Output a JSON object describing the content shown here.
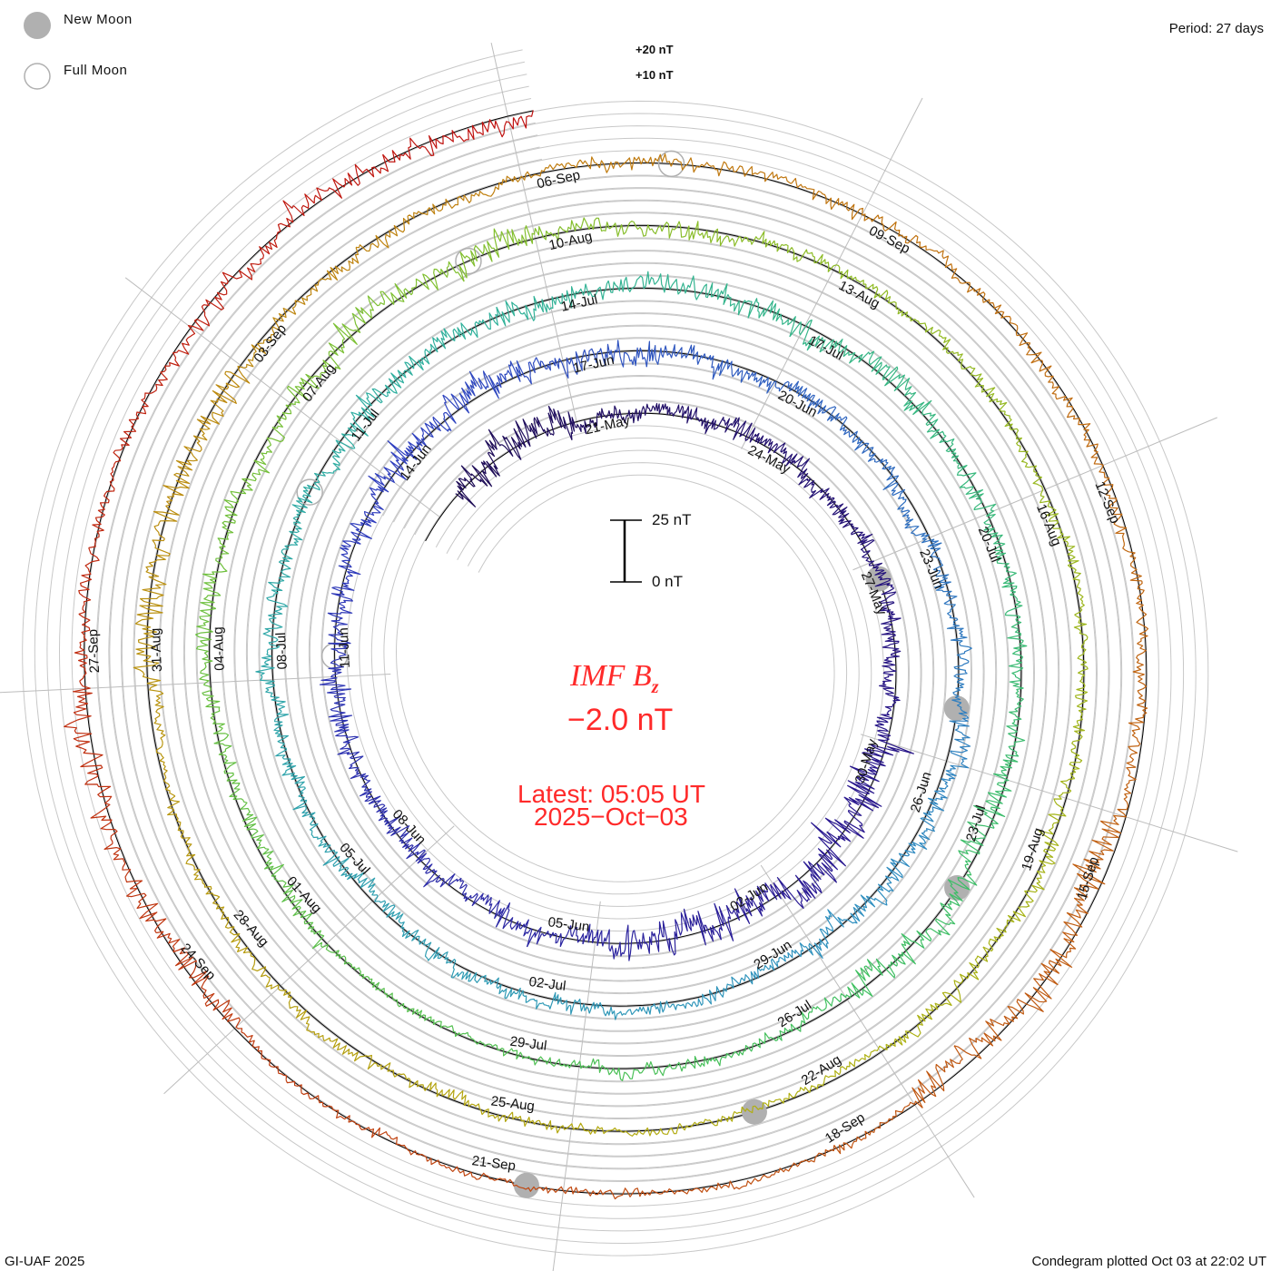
{
  "legend": {
    "new_moon": "New Moon",
    "full_moon": "Full Moon"
  },
  "period_label": "Period: 27 days",
  "grid_labels": [
    "+20 nT",
    "+10 nT"
  ],
  "scale_bar": {
    "top_label": "25 nT",
    "bottom_label": "0 nT",
    "value_nT": 25
  },
  "center": {
    "title": "IMF B",
    "title_sub": "z",
    "value": "−2.0 nT",
    "latest_label": "Latest: 05:05 UT",
    "latest_date": "2025−Oct−03"
  },
  "footer": {
    "left": "GI-UAF 2025",
    "right": "Condegram plotted Oct 03 at 22:02 UT"
  },
  "chart_data": {
    "type": "line",
    "subtype": "polar-spiral condegram",
    "title": "IMF Bz",
    "units": "nT",
    "period_days": 27,
    "first_label_date": "2025-05-21",
    "data_start": "2025-05-18",
    "data_end": "2025-10-03 05:05",
    "latest_value_nT": -2.0,
    "grid_step_nT": 5,
    "date_labels": [
      "21-May",
      "24-May",
      "27-May",
      "30-May",
      "02-Jun",
      "05-Jun",
      "08-Jun",
      "11-Jun",
      "14-Jun",
      "17-Jun",
      "20-Jun",
      "23-Jun",
      "26-Jun",
      "29-Jun",
      "02-Jul",
      "05-Jul",
      "08-Jul",
      "11-Jul",
      "14-Jul",
      "17-Jul",
      "20-Jul",
      "23-Jul",
      "26-Jul",
      "29-Jul",
      "01-Aug",
      "04-Aug",
      "07-Aug",
      "10-Aug",
      "13-Aug",
      "16-Aug",
      "19-Aug",
      "22-Aug",
      "25-Aug",
      "28-Aug",
      "31-Aug",
      "03-Sep",
      "06-Sep",
      "09-Sep",
      "12-Sep",
      "15-Sep",
      "18-Sep",
      "21-Sep",
      "24-Sep",
      "27-Sep"
    ],
    "approx_variability_nT_per_3day_from_2025-05-18": [
      7,
      4,
      4,
      4,
      9,
      8,
      5,
      5,
      5,
      6,
      5,
      4,
      4,
      5,
      3,
      4,
      4,
      4,
      5,
      5,
      5,
      4,
      6,
      3,
      2,
      4,
      4,
      6,
      4,
      3,
      3,
      4,
      2,
      3,
      3,
      6,
      3,
      3,
      3,
      3,
      7,
      2,
      2,
      6,
      3,
      5,
      5
    ],
    "new_moons": [
      "2025-05-27",
      "2025-06-25",
      "2025-07-24",
      "2025-08-23",
      "2025-09-21"
    ],
    "full_moons": [
      "2025-06-11",
      "2025-07-10",
      "2025-08-09",
      "2025-09-07"
    ],
    "color_ramp": [
      "#1c0a50",
      "#2a1890",
      "#3040c0",
      "#3090c0",
      "#30b0a0",
      "#40c060",
      "#80c030",
      "#b0b010",
      "#c08010",
      "#c05010",
      "#c01010"
    ],
    "moon_color": "#b0b0b0"
  }
}
